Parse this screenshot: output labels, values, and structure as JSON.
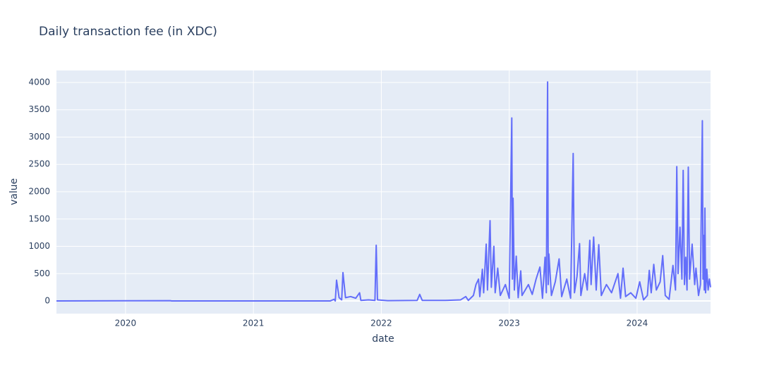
{
  "chart_data": {
    "type": "line",
    "title": "Daily transaction fee (in XDC)",
    "x_label": "date",
    "y_label": "value",
    "color": "#636efa",
    "grid": true,
    "xlim": [
      2019.46,
      2024.574
    ],
    "xticks": [
      2020,
      2021,
      2022,
      2023,
      2024
    ],
    "ylim": [
      -232,
      4219
    ],
    "yticks": [
      0,
      500,
      1000,
      1500,
      2000,
      2500,
      3000,
      3500,
      4000
    ],
    "x": [
      2019.46,
      2020.35,
      2020.36,
      2021.6,
      2021.63,
      2021.64,
      2021.65,
      2021.67,
      2021.69,
      2021.7,
      2021.72,
      2021.76,
      2021.8,
      2021.83,
      2021.84,
      2021.9,
      2021.95,
      2021.96,
      2021.97,
      2022.05,
      2022.28,
      2022.3,
      2022.32,
      2022.5,
      2022.62,
      2022.66,
      2022.68,
      2022.72,
      2022.74,
      2022.76,
      2022.77,
      2022.79,
      2022.8,
      2022.82,
      2022.83,
      2022.85,
      2022.86,
      2022.88,
      2022.89,
      2022.91,
      2022.93,
      2022.97,
      2023.0,
      2023.02,
      2023.025,
      2023.03,
      2023.04,
      2023.055,
      2023.07,
      2023.09,
      2023.1,
      2023.15,
      2023.18,
      2023.21,
      2023.24,
      2023.26,
      2023.28,
      2023.29,
      2023.3,
      2023.305,
      2023.31,
      2023.33,
      2023.36,
      2023.39,
      2023.41,
      2023.45,
      2023.48,
      2023.5,
      2023.51,
      2023.53,
      2023.55,
      2023.56,
      2023.59,
      2023.61,
      2023.63,
      2023.64,
      2023.66,
      2023.68,
      2023.7,
      2023.72,
      2023.76,
      2023.8,
      2023.85,
      2023.87,
      2023.89,
      2023.91,
      2023.95,
      2023.99,
      2024.02,
      2024.05,
      2024.08,
      2024.095,
      2024.11,
      2024.13,
      2024.15,
      2024.18,
      2024.2,
      2024.22,
      2024.25,
      2024.28,
      2024.3,
      2024.31,
      2024.32,
      2024.335,
      2024.35,
      2024.36,
      2024.37,
      2024.38,
      2024.39,
      2024.4,
      2024.41,
      2024.43,
      2024.45,
      2024.46,
      2024.48,
      2024.495,
      2024.51,
      2024.515,
      2024.52,
      2024.525,
      2024.53,
      2024.535,
      2024.545,
      2024.555,
      2024.565,
      2024.574
    ],
    "values": [
      0,
      5,
      0,
      0,
      30,
      0,
      380,
      60,
      20,
      520,
      60,
      80,
      50,
      150,
      10,
      20,
      10,
      1020,
      20,
      5,
      10,
      120,
      10,
      10,
      20,
      80,
      10,
      100,
      300,
      400,
      80,
      580,
      150,
      1040,
      200,
      1470,
      250,
      1000,
      150,
      600,
      100,
      300,
      50,
      3350,
      400,
      1880,
      200,
      820,
      60,
      550,
      100,
      300,
      120,
      400,
      620,
      50,
      800,
      150,
      4010,
      300,
      860,
      100,
      350,
      770,
      80,
      400,
      50,
      2700,
      150,
      450,
      1050,
      100,
      500,
      200,
      1110,
      300,
      1170,
      200,
      1030,
      100,
      300,
      150,
      500,
      50,
      600,
      80,
      150,
      50,
      350,
      20,
      100,
      560,
      150,
      670,
      200,
      350,
      830,
      100,
      30,
      650,
      200,
      2460,
      500,
      1350,
      400,
      2390,
      300,
      800,
      200,
      2450,
      400,
      1040,
      300,
      600,
      100,
      300,
      3300,
      400,
      1200,
      200,
      1700,
      150,
      580,
      200,
      400,
      250
    ]
  }
}
